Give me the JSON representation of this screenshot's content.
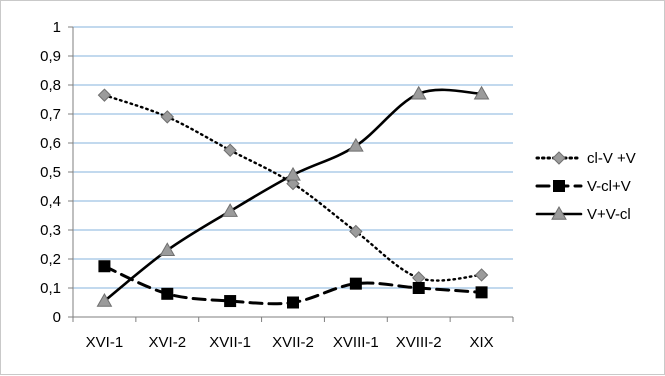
{
  "chart_data": {
    "type": "line",
    "title": "",
    "xlabel": "",
    "ylabel": "",
    "ylim": [
      0,
      1
    ],
    "yticks": [
      "0",
      "0,1",
      "0,2",
      "0,3",
      "0,4",
      "0,5",
      "0,6",
      "0,7",
      "0,8",
      "0,9",
      "1"
    ],
    "categories": [
      "XVI-1",
      "XVI-2",
      "XVII-1",
      "XVII-2",
      "XVIII-1",
      "XVIII-2",
      "XIX"
    ],
    "grid": true,
    "legend_position": "right",
    "series": [
      {
        "name": "cl-V +V",
        "values": [
          0.765,
          0.69,
          0.575,
          0.46,
          0.295,
          0.135,
          0.145
        ],
        "style": "dotted",
        "marker": "diamond",
        "line_color": "#000000",
        "marker_color": "#9b9b9b"
      },
      {
        "name": "V-cl+V",
        "values": [
          0.175,
          0.08,
          0.055,
          0.05,
          0.115,
          0.1,
          0.085
        ],
        "style": "dashed",
        "marker": "square",
        "line_color": "#000000",
        "marker_color": "#000000"
      },
      {
        "name": "V+V-cl",
        "values": [
          0.055,
          0.23,
          0.365,
          0.49,
          0.59,
          0.77,
          0.77
        ],
        "style": "solid",
        "marker": "triangle",
        "line_color": "#000000",
        "marker_color": "#9b9b9b"
      }
    ],
    "colors": {
      "grid": "#86b3de",
      "axis": "#7f7f7f"
    }
  }
}
